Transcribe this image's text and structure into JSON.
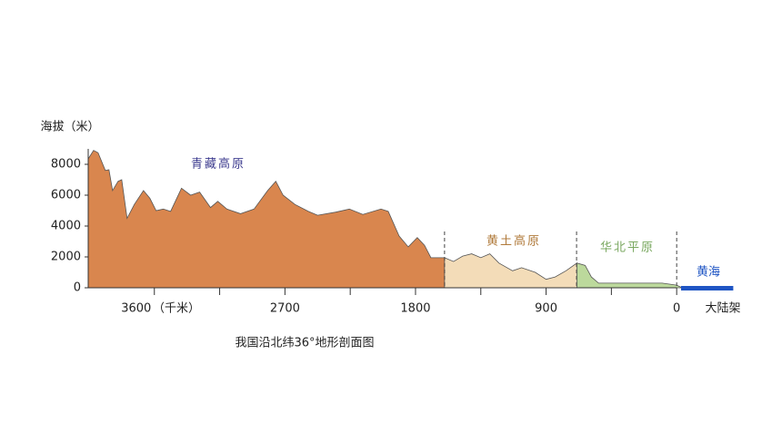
{
  "chart_data": {
    "type": "area",
    "title": "我国沿北纬36°地形剖面图",
    "y_label": "海拔（米）",
    "x_unit_label": "（千米）",
    "x_end_label": "大陆架",
    "xlim": [
      4056,
      -400
    ],
    "ylim": [
      0,
      9000
    ],
    "yticks": [
      0,
      2000,
      4000,
      6000,
      8000
    ],
    "xticks": [
      3600,
      2700,
      1800,
      900,
      0
    ],
    "xminor": [
      3150,
      2250,
      1350,
      450
    ],
    "dividers": [
      1600,
      690,
      0
    ],
    "series": [
      {
        "name": "青藏高原",
        "color": "#d9864e",
        "label_color": "#3b3a8e",
        "x": [
          4056,
          4019,
          3988,
          3938,
          3913,
          3888,
          3850,
          3825,
          3788,
          3738,
          3675,
          3631,
          3588,
          3538,
          3488,
          3413,
          3350,
          3288,
          3213,
          3163,
          3100,
          3006,
          2913,
          2819,
          2763,
          2713,
          2631,
          2538,
          2475,
          2350,
          2256,
          2163,
          2038,
          1988,
          1913,
          1850,
          1788,
          1738,
          1694,
          1600
        ],
        "values": [
          8350,
          8900,
          8750,
          7600,
          7650,
          6300,
          6900,
          7000,
          4500,
          5400,
          6300,
          5800,
          5000,
          5100,
          4950,
          6450,
          6000,
          6200,
          5200,
          5600,
          5100,
          4800,
          5100,
          6300,
          6900,
          6000,
          5400,
          4950,
          4700,
          4900,
          5100,
          4750,
          5100,
          4950,
          3350,
          2650,
          3250,
          2750,
          1950,
          1950
        ]
      },
      {
        "name": "黄土高原",
        "color": "#f3dcb8",
        "label_color": "#b07a3a",
        "x": [
          1600,
          1538,
          1475,
          1413,
          1350,
          1288,
          1225,
          1131,
          1069,
          975,
          900,
          838,
          763,
          688
        ],
        "values": [
          1950,
          1700,
          2050,
          2200,
          1950,
          2200,
          1600,
          1100,
          1300,
          1000,
          550,
          700,
          1100,
          1600
        ]
      },
      {
        "name": "华北平原",
        "color": "#bcd99c",
        "label_color": "#7aa860",
        "x": [
          688,
          631,
          588,
          538,
          413,
          288,
          100,
          0,
          -38
        ],
        "values": [
          1600,
          1450,
          700,
          300,
          300,
          300,
          300,
          170,
          0
        ]
      }
    ],
    "sea": {
      "name": "黄海",
      "color": "#1f55c4",
      "x": [
        -30,
        -390
      ]
    }
  }
}
